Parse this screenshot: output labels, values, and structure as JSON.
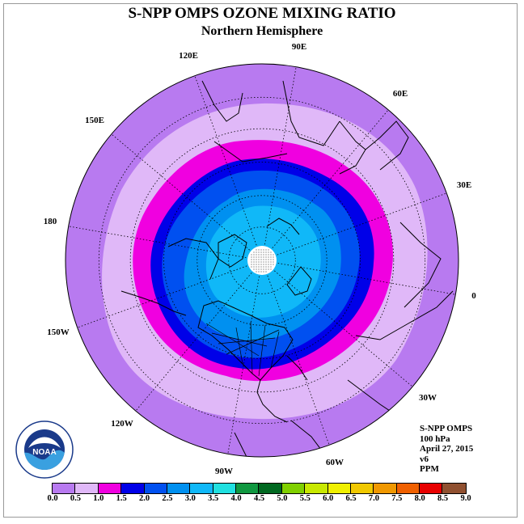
{
  "title": "S-NPP OMPS OZONE MIXING RATIO",
  "subtitle": "Northern Hemisphere",
  "longitude_labels": [
    "90E",
    "60E",
    "30E",
    "0",
    "30W",
    "60W",
    "90W",
    "120W",
    "150W",
    "180",
    "150E",
    "120E"
  ],
  "info": {
    "instrument": "S-NPP OMPS",
    "level": "100 hPa",
    "date": "April 27, 2015",
    "version": "v6",
    "units": "PPM"
  },
  "colorbar": {
    "ticks": [
      "0.0",
      "0.5",
      "1.0",
      "1.5",
      "2.0",
      "2.5",
      "3.0",
      "3.5",
      "4.0",
      "4.5",
      "5.0",
      "5.5",
      "6.0",
      "6.5",
      "7.0",
      "7.5",
      "8.0",
      "8.5",
      "9.0"
    ],
    "colors": [
      "#b87af0",
      "#e0b8f8",
      "#f000e0",
      "#0000e8",
      "#0050f0",
      "#0090f0",
      "#10b8f8",
      "#20e0e0",
      "#109840",
      "#006820",
      "#80d000",
      "#c8e800",
      "#f0f000",
      "#f0c800",
      "#f09800",
      "#f06000",
      "#e80000",
      "#905030"
    ]
  },
  "ozone_bands": [
    {
      "range": "0.0-0.5",
      "color": "#b87af0"
    },
    {
      "range": "0.5-1.0",
      "color": "#e0b8f8"
    },
    {
      "range": "1.0-1.5",
      "color": "#f000e0"
    },
    {
      "range": "1.5-2.0",
      "color": "#0000e8"
    },
    {
      "range": "2.0-2.5",
      "color": "#0050f0"
    },
    {
      "range": "2.5-3.0",
      "color": "#0090f0"
    },
    {
      "range": "3.0-3.5",
      "color": "#10b8f8"
    }
  ],
  "logo": {
    "text": "NOAA",
    "ring_text": "NATIONAL OCEANIC AND ATMOSPHERIC ADMINISTRATION · U.S. DEPARTMENT OF COMMERCE"
  }
}
